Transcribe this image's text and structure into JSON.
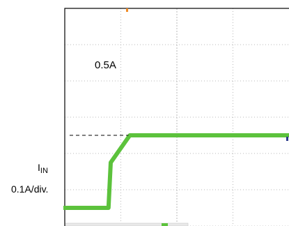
{
  "chart_data": {
    "type": "line",
    "title": "",
    "xlabel": "",
    "ylabel": "",
    "grid": true,
    "xlim": [
      0,
      10
    ],
    "ylim": [
      0,
      1.2
    ],
    "series": [
      {
        "x": [
          0,
          1.65,
          1.95,
          2.05,
          2.9,
          10
        ],
        "values": [
          0.1,
          0.1,
          0.1,
          0.35,
          0.5,
          0.5
        ]
      }
    ],
    "annotations": {
      "level_label": "0.5A",
      "channel_label": "I",
      "channel_subscript": "IN",
      "scale_label": "0.1A/div."
    },
    "colors": {
      "trace": "#5cc23c",
      "marker": "#f08a24",
      "grid": "#b9b9b9",
      "frame": "#000000"
    }
  }
}
